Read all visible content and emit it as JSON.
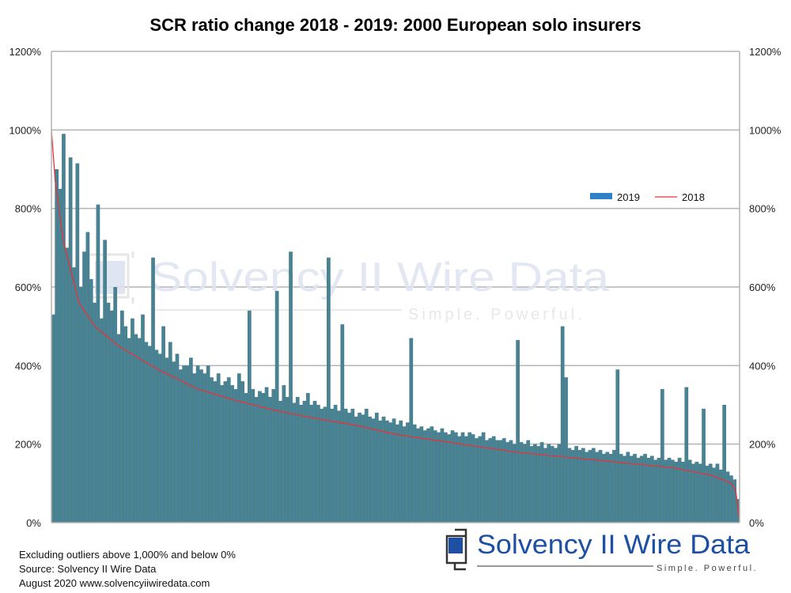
{
  "chart_data": {
    "type": "bar",
    "title": "SCR ratio change 2018 - 2019: 2000 European solo insurers",
    "xlabel": "",
    "ylabel": "",
    "ylim": [
      0,
      1200
    ],
    "y_ticks": [
      "0%",
      "200%",
      "400%",
      "600%",
      "800%",
      "1000%",
      "1200%"
    ],
    "y_tick_values": [
      0,
      200,
      400,
      600,
      800,
      1000,
      1200
    ],
    "y_axis_sides": [
      "left",
      "right"
    ],
    "grid": true,
    "legend_position": "right",
    "insurer_count": 2000,
    "series": [
      {
        "name": "2019",
        "type": "bar",
        "color": "#2f80c6",
        "fill_color": "#4d838d",
        "sample_step": 10,
        "values": [
          530,
          900,
          850,
          990,
          700,
          930,
          650,
          915,
          600,
          690,
          740,
          620,
          560,
          810,
          520,
          720,
          560,
          540,
          600,
          480,
          540,
          500,
          470,
          520,
          480,
          470,
          530,
          460,
          450,
          675,
          440,
          430,
          500,
          420,
          460,
          410,
          430,
          390,
          400,
          400,
          420,
          380,
          400,
          390,
          380,
          400,
          370,
          360,
          380,
          350,
          360,
          370,
          350,
          340,
          380,
          360,
          330,
          540,
          340,
          320,
          335,
          330,
          345,
          320,
          340,
          590,
          310,
          350,
          320,
          690,
          305,
          320,
          300,
          310,
          330,
          300,
          310,
          300,
          290,
          295,
          675,
          290,
          300,
          285,
          505,
          290,
          280,
          290,
          270,
          280,
          275,
          290,
          270,
          265,
          280,
          260,
          270,
          260,
          255,
          265,
          250,
          260,
          245,
          255,
          470,
          250,
          240,
          245,
          235,
          240,
          245,
          235,
          230,
          240,
          230,
          225,
          235,
          230,
          220,
          230,
          220,
          230,
          225,
          215,
          220,
          230,
          210,
          215,
          220,
          210,
          210,
          215,
          205,
          210,
          200,
          465,
          205,
          200,
          210,
          195,
          200,
          195,
          205,
          190,
          200,
          195,
          190,
          200,
          500,
          370,
          190,
          185,
          195,
          185,
          190,
          180,
          185,
          190,
          180,
          185,
          175,
          180,
          175,
          185,
          390,
          175,
          170,
          180,
          170,
          175,
          165,
          170,
          175,
          165,
          170,
          160,
          165,
          340,
          160,
          165,
          160,
          155,
          165,
          155,
          345,
          160,
          150,
          155,
          150,
          290,
          145,
          150,
          140,
          150,
          135,
          300,
          130,
          120,
          110,
          60
        ]
      },
      {
        "name": "2018",
        "type": "line",
        "color": "#e8323c",
        "points": [
          [
            0,
            1000
          ],
          [
            11,
            870
          ],
          [
            34,
            720
          ],
          [
            57,
            640
          ],
          [
            80,
            560
          ],
          [
            126,
            500
          ],
          [
            195,
            450
          ],
          [
            310,
            390
          ],
          [
            425,
            340
          ],
          [
            540,
            310
          ],
          [
            655,
            285
          ],
          [
            770,
            265
          ],
          [
            885,
            248
          ],
          [
            1000,
            225
          ],
          [
            1115,
            210
          ],
          [
            1230,
            195
          ],
          [
            1345,
            180
          ],
          [
            1460,
            170
          ],
          [
            1575,
            160
          ],
          [
            1690,
            150
          ],
          [
            1805,
            140
          ],
          [
            1920,
            120
          ],
          [
            1977,
            100
          ],
          [
            1989,
            80
          ],
          [
            2000,
            5
          ]
        ]
      }
    ]
  },
  "watermark": {
    "name": "Solvency II Wire Data",
    "tagline": "Simple. Powerful."
  },
  "logo": {
    "name": "Solvency II Wire Data",
    "tagline": "Simple. Powerful."
  },
  "footnotes": [
    "Excluding outliers above 1,000% and below 0%",
    "Source: Solvency II Wire Data",
    "August 2020   www.solvencyiiwiredata.com"
  ]
}
